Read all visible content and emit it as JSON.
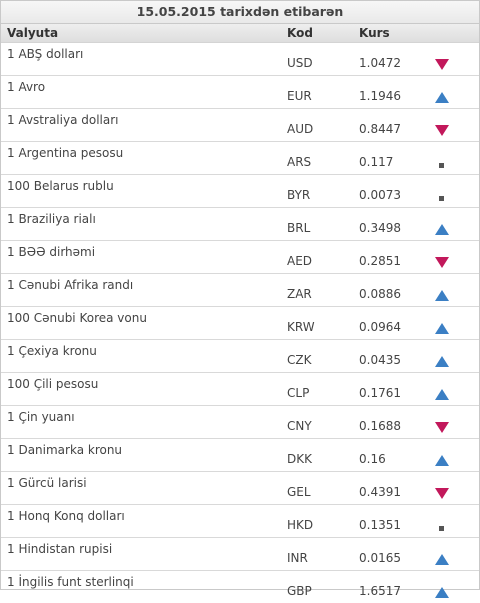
{
  "title": "15.05.2015 tarixdən etibarən",
  "columns": {
    "currency": "Valyuta",
    "code": "Kod",
    "rate": "Kurs"
  },
  "colors": {
    "up": "#3b7fc4",
    "down": "#c2185b",
    "same": "#555555"
  },
  "rows": [
    {
      "name": "1 ABŞ dolları",
      "code": "USD",
      "rate": "1.0472",
      "trend": "down"
    },
    {
      "name": "1 Avro",
      "code": "EUR",
      "rate": "1.1946",
      "trend": "up"
    },
    {
      "name": "1 Avstraliya dolları",
      "code": "AUD",
      "rate": "0.8447",
      "trend": "down"
    },
    {
      "name": "1 Argentina pesosu",
      "code": "ARS",
      "rate": "0.117",
      "trend": "same"
    },
    {
      "name": "100 Belarus rublu",
      "code": "BYR",
      "rate": "0.0073",
      "trend": "same"
    },
    {
      "name": "1 Braziliya rialı",
      "code": "BRL",
      "rate": "0.3498",
      "trend": "up"
    },
    {
      "name": "1 BƏƏ dirhəmi",
      "code": "AED",
      "rate": "0.2851",
      "trend": "down"
    },
    {
      "name": "1 Cənubi Afrika randı",
      "code": "ZAR",
      "rate": "0.0886",
      "trend": "up"
    },
    {
      "name": "100 Cənubi Korea vonu",
      "code": "KRW",
      "rate": "0.0964",
      "trend": "up"
    },
    {
      "name": "1 Çexiya kronu",
      "code": "CZK",
      "rate": "0.0435",
      "trend": "up"
    },
    {
      "name": "100 Çili pesosu",
      "code": "CLP",
      "rate": "0.1761",
      "trend": "up"
    },
    {
      "name": "1 Çin yuanı",
      "code": "CNY",
      "rate": "0.1688",
      "trend": "down"
    },
    {
      "name": "1 Danimarka kronu",
      "code": "DKK",
      "rate": "0.16",
      "trend": "up"
    },
    {
      "name": "1 Gürcü larisi",
      "code": "GEL",
      "rate": "0.4391",
      "trend": "down"
    },
    {
      "name": "1 Honq Konq dolları",
      "code": "HKD",
      "rate": "0.1351",
      "trend": "same"
    },
    {
      "name": "1 Hindistan rupisi",
      "code": "INR",
      "rate": "0.0165",
      "trend": "up"
    },
    {
      "name": "1 İngilis funt sterlinqi",
      "code": "GBP",
      "rate": "1.6517",
      "trend": "up"
    }
  ]
}
